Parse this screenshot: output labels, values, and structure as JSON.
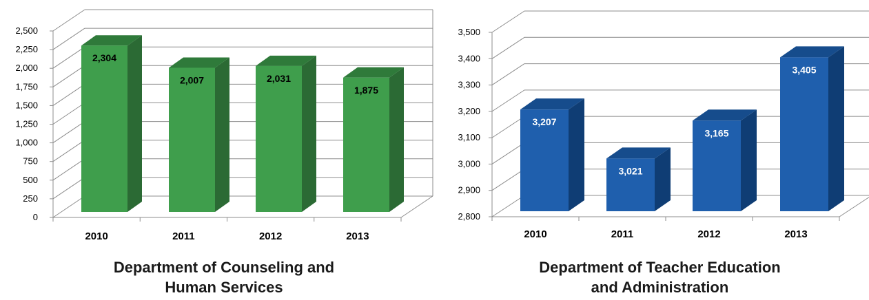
{
  "chart_data": [
    {
      "type": "bar",
      "title": "Department of Counseling and\nHuman Services",
      "categories": [
        "2010",
        "2011",
        "2012",
        "2013"
      ],
      "values": [
        2304,
        2007,
        2031,
        1875
      ],
      "data_labels": [
        "2,304",
        "2,007",
        "2,031",
        "1,875"
      ],
      "ylim": [
        0,
        2500
      ],
      "yticks": [
        "0",
        "250",
        "500",
        "750",
        "1,000",
        "1,250",
        "1,500",
        "1,750",
        "2,000",
        "2,250",
        "2,500"
      ],
      "grid": true,
      "style": "3d",
      "colors": {
        "front": "#3f9e4c",
        "side": "#2b6a34",
        "top": "#2f7a3a",
        "label": "#000000"
      }
    },
    {
      "type": "bar",
      "title": "Department of Teacher Education\nand Administration",
      "categories": [
        "2010",
        "2011",
        "2012",
        "2013"
      ],
      "values": [
        3207,
        3021,
        3165,
        3405
      ],
      "data_labels": [
        "3,207",
        "3,021",
        "3,165",
        "3,405"
      ],
      "ylim": [
        2800,
        3500
      ],
      "yticks": [
        "2,800",
        "2,900",
        "3,000",
        "3,100",
        "3,200",
        "3,300",
        "3,400",
        "3,500"
      ],
      "grid": true,
      "style": "3d",
      "colors": {
        "front": "#1f5fad",
        "side": "#0f3d74",
        "top": "#164c8c",
        "label": "#ffffff"
      }
    }
  ]
}
